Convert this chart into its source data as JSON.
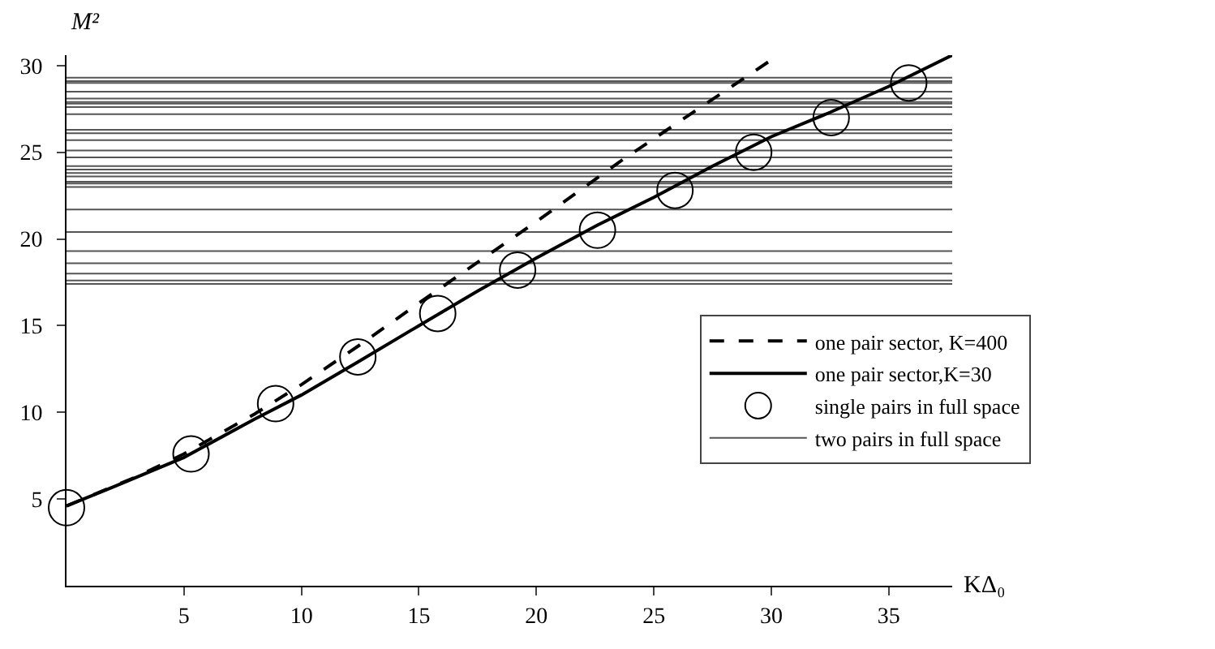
{
  "chart_data": {
    "type": "line",
    "xlabel": "KΔ₀",
    "ylabel": "M²",
    "xlim": [
      0,
      37.7
    ],
    "ylim": [
      0,
      30.6
    ],
    "xticks": [
      5,
      10,
      15,
      20,
      25,
      30,
      35
    ],
    "yticks": [
      5,
      10,
      15,
      20,
      25,
      30
    ],
    "legend": "bottom right",
    "line_style": "solid",
    "series": [
      {
        "name": "one pair sector, K=400",
        "line_style": "dashed",
        "color": "#000000",
        "x": [
          0,
          3,
          5,
          8,
          10,
          12.5,
          15,
          20,
          23.7,
          27,
          30.3
        ],
        "values": [
          4.6,
          6.3,
          7.6,
          9.9,
          11.6,
          13.9,
          16.3,
          21.0,
          24.6,
          27.6,
          30.6
        ]
      },
      {
        "name": "one pair sector,K=30",
        "color": "#000000",
        "x": [
          0,
          2,
          5,
          8,
          10,
          12.4,
          15,
          17.5,
          20,
          22.6,
          25,
          27.5,
          30,
          32.5,
          35,
          37.7
        ],
        "values": [
          4.6,
          5.7,
          7.4,
          9.6,
          11.0,
          12.9,
          15.0,
          17.0,
          18.9,
          20.8,
          22.4,
          24.2,
          25.9,
          27.3,
          28.8,
          30.6
        ]
      },
      {
        "name": "single pairs in full space",
        "type": "scatter",
        "marker": "circle",
        "color": "#000000",
        "x": [
          0,
          5.3,
          8.9,
          12.4,
          15.8,
          19.2,
          22.6,
          25.9,
          29.25,
          32.55,
          35.85
        ],
        "values": [
          4.5,
          7.6,
          10.5,
          13.2,
          15.7,
          18.2,
          20.5,
          22.8,
          25.0,
          27.0,
          29.0
        ]
      },
      {
        "name": "two pairs in full space",
        "color": "#555555",
        "x": [
          0,
          37.7
        ],
        "values": [
          29.3,
          29.3
        ]
      },
      {
        "color": "#555555",
        "x": [
          0,
          37.7
        ],
        "values": [
          29.1,
          29.1
        ]
      },
      {
        "color": "#555555",
        "x": [
          0,
          37.7
        ],
        "values": [
          29.0,
          29.0
        ]
      },
      {
        "color": "#555555",
        "x": [
          0,
          37.7
        ],
        "values": [
          28.5,
          28.5
        ]
      },
      {
        "color": "#555555",
        "x": [
          0,
          37.7
        ],
        "values": [
          28.1,
          28.1
        ]
      },
      {
        "color": "#555555",
        "x": [
          0,
          37.7
        ],
        "values": [
          27.9,
          27.9
        ]
      },
      {
        "color": "#555555",
        "x": [
          0,
          37.7
        ],
        "values": [
          27.8,
          27.8
        ]
      },
      {
        "color": "#555555",
        "x": [
          0,
          37.7
        ],
        "values": [
          27.6,
          27.6
        ]
      },
      {
        "color": "#555555",
        "x": [
          0,
          37.7
        ],
        "values": [
          27.2,
          27.2
        ]
      },
      {
        "color": "#555555",
        "x": [
          0,
          37.7
        ],
        "values": [
          26.3,
          26.3
        ]
      },
      {
        "color": "#555555",
        "x": [
          0,
          37.7
        ],
        "values": [
          26.1,
          26.1
        ]
      },
      {
        "color": "#555555",
        "x": [
          0,
          37.7
        ],
        "values": [
          25.7,
          25.7
        ]
      },
      {
        "color": "#555555",
        "x": [
          0,
          37.7
        ],
        "values": [
          25.1,
          25.1
        ]
      },
      {
        "color": "#555555",
        "x": [
          0,
          37.7
        ],
        "values": [
          24.7,
          24.7
        ]
      },
      {
        "color": "#555555",
        "x": [
          0,
          37.7
        ],
        "values": [
          24.2,
          24.2
        ]
      },
      {
        "color": "#555555",
        "x": [
          0,
          37.7
        ],
        "values": [
          24.0,
          24.0
        ]
      },
      {
        "color": "#555555",
        "x": [
          0,
          37.7
        ],
        "values": [
          23.8,
          23.8
        ]
      },
      {
        "color": "#555555",
        "x": [
          0,
          37.7
        ],
        "values": [
          23.6,
          23.6
        ]
      },
      {
        "color": "#555555",
        "x": [
          0,
          37.7
        ],
        "values": [
          23.3,
          23.3
        ]
      },
      {
        "color": "#555555",
        "x": [
          0,
          37.7
        ],
        "values": [
          23.2,
          23.2
        ]
      },
      {
        "color": "#555555",
        "x": [
          0,
          37.7
        ],
        "values": [
          23.0,
          23.0
        ]
      },
      {
        "color": "#555555",
        "x": [
          0,
          37.7
        ],
        "values": [
          21.7,
          21.7
        ]
      },
      {
        "color": "#555555",
        "x": [
          0,
          37.7
        ],
        "values": [
          20.4,
          20.4
        ]
      },
      {
        "color": "#555555",
        "x": [
          0,
          37.7
        ],
        "values": [
          19.3,
          19.3
        ]
      },
      {
        "color": "#555555",
        "x": [
          0,
          37.7
        ],
        "values": [
          18.6,
          18.6
        ]
      },
      {
        "color": "#555555",
        "x": [
          0,
          37.7
        ],
        "values": [
          18.0,
          18.0
        ]
      },
      {
        "color": "#555555",
        "x": [
          0,
          37.7
        ],
        "values": [
          17.6,
          17.6
        ]
      },
      {
        "color": "#555555",
        "x": [
          0,
          37.7
        ],
        "values": [
          17.4,
          17.4
        ]
      }
    ]
  }
}
